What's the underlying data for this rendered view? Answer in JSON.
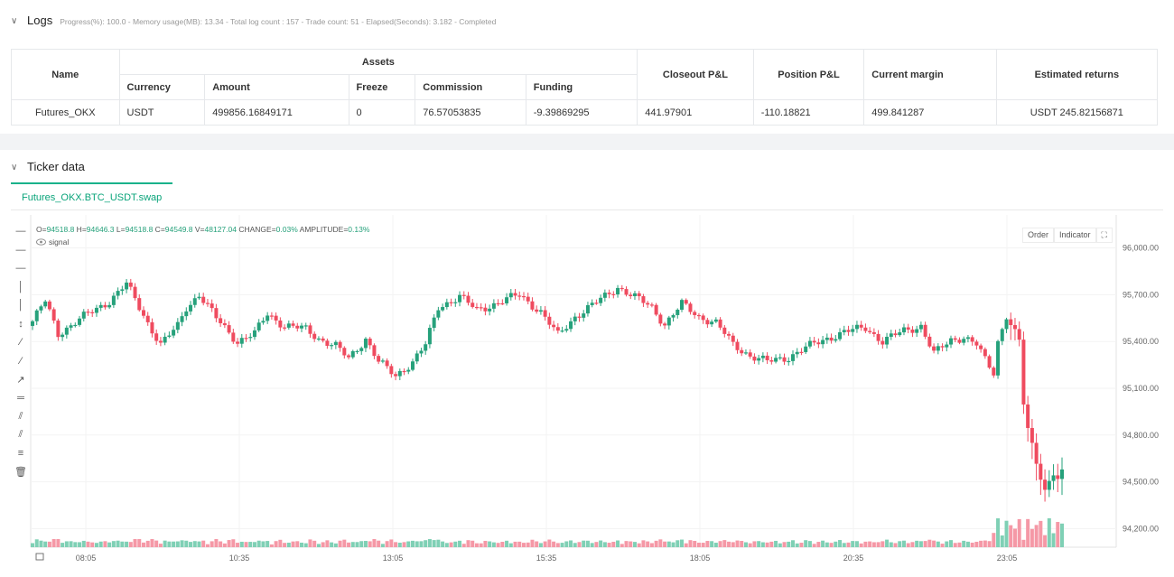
{
  "logs": {
    "title": "Logs",
    "status": "Progress(%): 100.0  - Memory usage(MB): 13.34 - Total log count : 157 - Trade count:  51 - Elapsed(Seconds): 3.182 - Completed"
  },
  "table": {
    "headers": {
      "name": "Name",
      "assets": "Assets",
      "closeout": "Closeout P&L",
      "position": "Position P&L",
      "margin": "Current margin",
      "returns": "Estimated returns"
    },
    "sub_headers": [
      "Currency",
      "Amount",
      "Freeze",
      "Commission",
      "Funding"
    ],
    "row": {
      "name": "Futures_OKX",
      "currency": "USDT",
      "amount": "499856.16849171",
      "freeze": "0",
      "commission": "76.57053835",
      "funding": "-9.39869295",
      "closeout": "441.97901",
      "position": "-110.18821",
      "margin": "499.841287",
      "returns": "USDT 245.82156871"
    }
  },
  "ticker": {
    "title": "Ticker data",
    "tab": "Futures_OKX.BTC_USDT.swap",
    "ohlc": {
      "o_label": "O=",
      "o": "94518.8",
      "h_label": " H=",
      "h": "94646.3",
      "l_label": " L=",
      "l": "94518.8",
      "c_label": " C=",
      "c": "94549.8",
      "v_label": " V=",
      "v": "48127.04",
      "change_label": " CHANGE=",
      "change": "0.03%",
      "amp_label": " AMPLITUDE=",
      "amp": "0.13%"
    },
    "signal_label": "signal",
    "order_label": "Order",
    "indicator_label": "Indicator"
  },
  "toolbar_icons": [
    "horizontal-line-icon",
    "horizontal-ray-icon",
    "extended-line-icon",
    "vertical-line-icon",
    "vertical-segment-icon",
    "price-range-icon",
    "trend-line-icon",
    "ray-icon",
    "arrow-line-icon",
    "price-line-icon",
    "parallel-channel-icon",
    "double-channel-icon",
    "fib-icon",
    "trash-icon"
  ],
  "colors": {
    "up": "#26a17b",
    "down": "#ef4b5f",
    "up_vol": "#7fd0b5",
    "down_vol": "#f598a6",
    "accent": "#19b28b"
  },
  "chart_data": {
    "type": "candlestick",
    "x_ticks": [
      "08:05",
      "10:35",
      "13:05",
      "15:35",
      "18:05",
      "20:35",
      "23:05"
    ],
    "y_ticks": [
      "96,000.00",
      "95,700.00",
      "95,400.00",
      "95,100.00",
      "94,800.00",
      "94,500.00",
      "94,200.00"
    ],
    "ylim": [
      94150,
      96050
    ],
    "y_tick_values": [
      96000,
      95700,
      95400,
      95100,
      94800,
      94500,
      94200
    ],
    "anchors": [
      [
        0,
        95530
      ],
      [
        3,
        95660
      ],
      [
        6,
        95450
      ],
      [
        12,
        95560
      ],
      [
        18,
        95660
      ],
      [
        22,
        95770
      ],
      [
        27,
        95520
      ],
      [
        30,
        95380
      ],
      [
        34,
        95500
      ],
      [
        36,
        95620
      ],
      [
        39,
        95700
      ],
      [
        43,
        95550
      ],
      [
        48,
        95400
      ],
      [
        52,
        95450
      ],
      [
        55,
        95580
      ],
      [
        59,
        95500
      ],
      [
        64,
        95480
      ],
      [
        67,
        95420
      ],
      [
        71,
        95370
      ],
      [
        74,
        95290
      ],
      [
        78,
        95420
      ],
      [
        81,
        95270
      ],
      [
        85,
        95180
      ],
      [
        89,
        95270
      ],
      [
        92,
        95380
      ],
      [
        95,
        95620
      ],
      [
        100,
        95690
      ],
      [
        104,
        95600
      ],
      [
        109,
        95650
      ],
      [
        114,
        95700
      ],
      [
        119,
        95590
      ],
      [
        123,
        95440
      ],
      [
        127,
        95560
      ],
      [
        132,
        95650
      ],
      [
        137,
        95750
      ],
      [
        140,
        95700
      ],
      [
        145,
        95620
      ],
      [
        148,
        95510
      ],
      [
        152,
        95640
      ],
      [
        156,
        95560
      ],
      [
        160,
        95520
      ],
      [
        164,
        95380
      ],
      [
        168,
        95310
      ],
      [
        172,
        95270
      ],
      [
        177,
        95300
      ],
      [
        181,
        95360
      ],
      [
        186,
        95420
      ],
      [
        190,
        95460
      ],
      [
        195,
        95490
      ],
      [
        199,
        95400
      ],
      [
        204,
        95470
      ],
      [
        208,
        95500
      ],
      [
        211,
        95320
      ],
      [
        215,
        95410
      ],
      [
        218,
        95430
      ],
      [
        221,
        95380
      ],
      [
        223,
        95280
      ],
      [
        225,
        95200
      ],
      [
        226,
        95400
      ],
      [
        228,
        95570
      ],
      [
        231,
        95400
      ],
      [
        232,
        95000
      ],
      [
        233,
        94830
      ],
      [
        235,
        94630
      ],
      [
        237,
        94450
      ],
      [
        239,
        94560
      ],
      [
        240,
        94520
      ],
      [
        241,
        94550
      ]
    ],
    "volume_level_range": [
      0,
      1
    ]
  }
}
